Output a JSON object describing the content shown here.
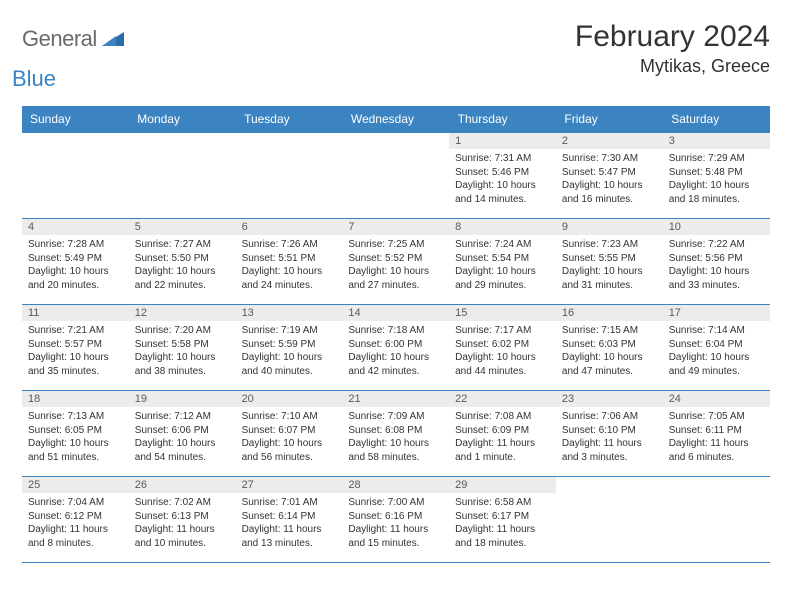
{
  "brand": {
    "word1": "General",
    "word2": "Blue"
  },
  "title": "February 2024",
  "location": "Mytikas, Greece",
  "colors": {
    "header_bg": "#3b83c1",
    "header_text": "#ffffff",
    "daynum_bg": "#ececec",
    "daynum_text": "#5a5a5a",
    "cell_border": "#3b83c1",
    "body_text": "#333333",
    "logo_gray": "#6a6a6a",
    "logo_blue": "#3b83c1"
  },
  "weekdays": [
    "Sunday",
    "Monday",
    "Tuesday",
    "Wednesday",
    "Thursday",
    "Friday",
    "Saturday"
  ],
  "weeks": [
    [
      {
        "n": "",
        "sunrise": "",
        "sunset": "",
        "daylight": ""
      },
      {
        "n": "",
        "sunrise": "",
        "sunset": "",
        "daylight": ""
      },
      {
        "n": "",
        "sunrise": "",
        "sunset": "",
        "daylight": ""
      },
      {
        "n": "",
        "sunrise": "",
        "sunset": "",
        "daylight": ""
      },
      {
        "n": "1",
        "sunrise": "Sunrise: 7:31 AM",
        "sunset": "Sunset: 5:46 PM",
        "daylight": "Daylight: 10 hours and 14 minutes."
      },
      {
        "n": "2",
        "sunrise": "Sunrise: 7:30 AM",
        "sunset": "Sunset: 5:47 PM",
        "daylight": "Daylight: 10 hours and 16 minutes."
      },
      {
        "n": "3",
        "sunrise": "Sunrise: 7:29 AM",
        "sunset": "Sunset: 5:48 PM",
        "daylight": "Daylight: 10 hours and 18 minutes."
      }
    ],
    [
      {
        "n": "4",
        "sunrise": "Sunrise: 7:28 AM",
        "sunset": "Sunset: 5:49 PM",
        "daylight": "Daylight: 10 hours and 20 minutes."
      },
      {
        "n": "5",
        "sunrise": "Sunrise: 7:27 AM",
        "sunset": "Sunset: 5:50 PM",
        "daylight": "Daylight: 10 hours and 22 minutes."
      },
      {
        "n": "6",
        "sunrise": "Sunrise: 7:26 AM",
        "sunset": "Sunset: 5:51 PM",
        "daylight": "Daylight: 10 hours and 24 minutes."
      },
      {
        "n": "7",
        "sunrise": "Sunrise: 7:25 AM",
        "sunset": "Sunset: 5:52 PM",
        "daylight": "Daylight: 10 hours and 27 minutes."
      },
      {
        "n": "8",
        "sunrise": "Sunrise: 7:24 AM",
        "sunset": "Sunset: 5:54 PM",
        "daylight": "Daylight: 10 hours and 29 minutes."
      },
      {
        "n": "9",
        "sunrise": "Sunrise: 7:23 AM",
        "sunset": "Sunset: 5:55 PM",
        "daylight": "Daylight: 10 hours and 31 minutes."
      },
      {
        "n": "10",
        "sunrise": "Sunrise: 7:22 AM",
        "sunset": "Sunset: 5:56 PM",
        "daylight": "Daylight: 10 hours and 33 minutes."
      }
    ],
    [
      {
        "n": "11",
        "sunrise": "Sunrise: 7:21 AM",
        "sunset": "Sunset: 5:57 PM",
        "daylight": "Daylight: 10 hours and 35 minutes."
      },
      {
        "n": "12",
        "sunrise": "Sunrise: 7:20 AM",
        "sunset": "Sunset: 5:58 PM",
        "daylight": "Daylight: 10 hours and 38 minutes."
      },
      {
        "n": "13",
        "sunrise": "Sunrise: 7:19 AM",
        "sunset": "Sunset: 5:59 PM",
        "daylight": "Daylight: 10 hours and 40 minutes."
      },
      {
        "n": "14",
        "sunrise": "Sunrise: 7:18 AM",
        "sunset": "Sunset: 6:00 PM",
        "daylight": "Daylight: 10 hours and 42 minutes."
      },
      {
        "n": "15",
        "sunrise": "Sunrise: 7:17 AM",
        "sunset": "Sunset: 6:02 PM",
        "daylight": "Daylight: 10 hours and 44 minutes."
      },
      {
        "n": "16",
        "sunrise": "Sunrise: 7:15 AM",
        "sunset": "Sunset: 6:03 PM",
        "daylight": "Daylight: 10 hours and 47 minutes."
      },
      {
        "n": "17",
        "sunrise": "Sunrise: 7:14 AM",
        "sunset": "Sunset: 6:04 PM",
        "daylight": "Daylight: 10 hours and 49 minutes."
      }
    ],
    [
      {
        "n": "18",
        "sunrise": "Sunrise: 7:13 AM",
        "sunset": "Sunset: 6:05 PM",
        "daylight": "Daylight: 10 hours and 51 minutes."
      },
      {
        "n": "19",
        "sunrise": "Sunrise: 7:12 AM",
        "sunset": "Sunset: 6:06 PM",
        "daylight": "Daylight: 10 hours and 54 minutes."
      },
      {
        "n": "20",
        "sunrise": "Sunrise: 7:10 AM",
        "sunset": "Sunset: 6:07 PM",
        "daylight": "Daylight: 10 hours and 56 minutes."
      },
      {
        "n": "21",
        "sunrise": "Sunrise: 7:09 AM",
        "sunset": "Sunset: 6:08 PM",
        "daylight": "Daylight: 10 hours and 58 minutes."
      },
      {
        "n": "22",
        "sunrise": "Sunrise: 7:08 AM",
        "sunset": "Sunset: 6:09 PM",
        "daylight": "Daylight: 11 hours and 1 minute."
      },
      {
        "n": "23",
        "sunrise": "Sunrise: 7:06 AM",
        "sunset": "Sunset: 6:10 PM",
        "daylight": "Daylight: 11 hours and 3 minutes."
      },
      {
        "n": "24",
        "sunrise": "Sunrise: 7:05 AM",
        "sunset": "Sunset: 6:11 PM",
        "daylight": "Daylight: 11 hours and 6 minutes."
      }
    ],
    [
      {
        "n": "25",
        "sunrise": "Sunrise: 7:04 AM",
        "sunset": "Sunset: 6:12 PM",
        "daylight": "Daylight: 11 hours and 8 minutes."
      },
      {
        "n": "26",
        "sunrise": "Sunrise: 7:02 AM",
        "sunset": "Sunset: 6:13 PM",
        "daylight": "Daylight: 11 hours and 10 minutes."
      },
      {
        "n": "27",
        "sunrise": "Sunrise: 7:01 AM",
        "sunset": "Sunset: 6:14 PM",
        "daylight": "Daylight: 11 hours and 13 minutes."
      },
      {
        "n": "28",
        "sunrise": "Sunrise: 7:00 AM",
        "sunset": "Sunset: 6:16 PM",
        "daylight": "Daylight: 11 hours and 15 minutes."
      },
      {
        "n": "29",
        "sunrise": "Sunrise: 6:58 AM",
        "sunset": "Sunset: 6:17 PM",
        "daylight": "Daylight: 11 hours and 18 minutes."
      },
      {
        "n": "",
        "sunrise": "",
        "sunset": "",
        "daylight": ""
      },
      {
        "n": "",
        "sunrise": "",
        "sunset": "",
        "daylight": ""
      }
    ]
  ]
}
